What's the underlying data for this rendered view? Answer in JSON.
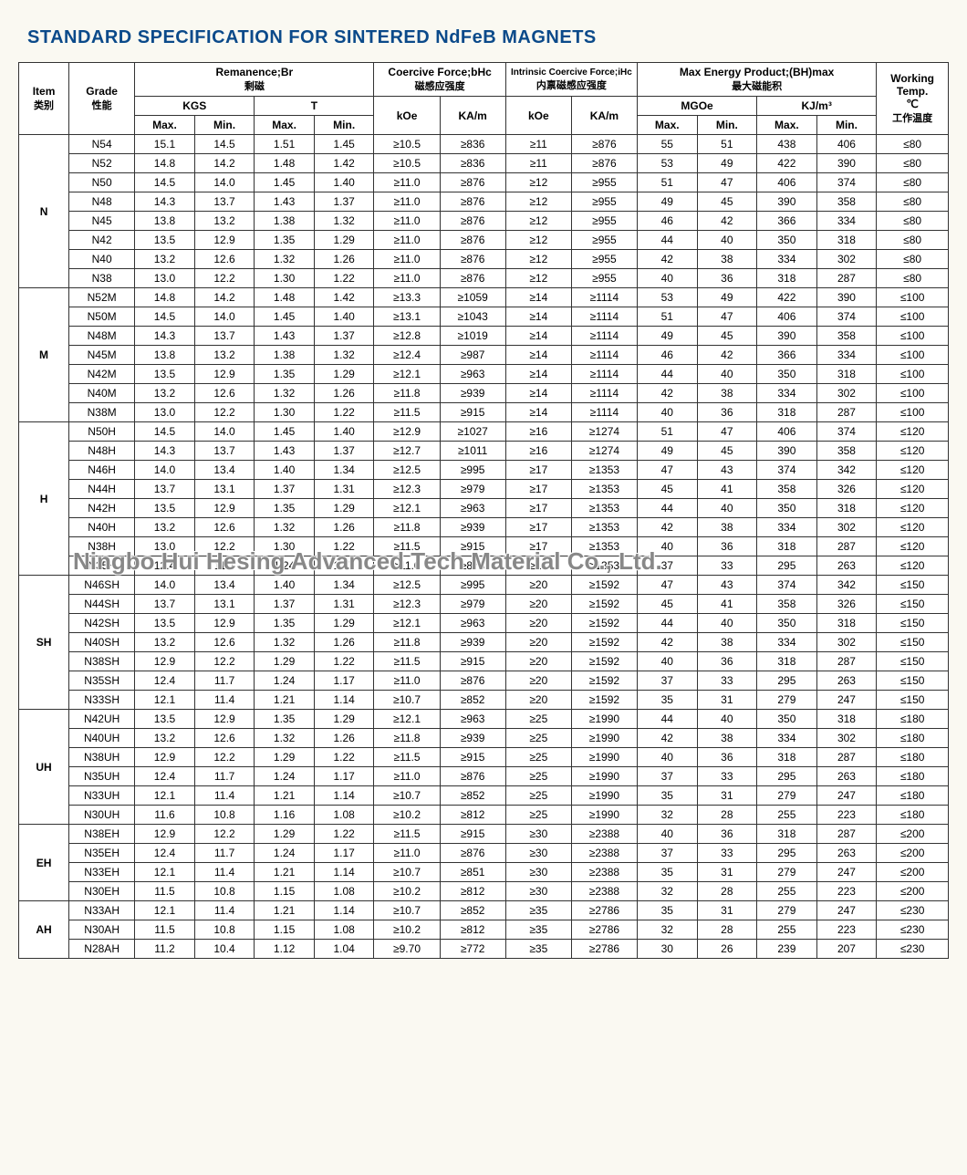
{
  "title": "STANDARD SPECIFICATION FOR SINTERED NdFeB MAGNETS",
  "watermark": "Ningbo Hui Hesing Advanced Tech Material Co., Ltd.",
  "headers": {
    "item": "Item",
    "item_cn": "类别",
    "grade": "Grade",
    "grade_cn": "性能",
    "remanence": "Remanence;Br",
    "remanence_cn": "剩磁",
    "kgs": "KGS",
    "t": "T",
    "coercive": "Coercive Force;bHc",
    "coercive_cn": "磁感应强度",
    "intrinsic": "Intrinsic Coercive Force;iHc",
    "intrinsic_cn": "内禀磁感应强度",
    "maxenergy": "Max Energy Product;(BH)max",
    "maxenergy_cn": "最大磁能积",
    "mgoe": "MGOe",
    "kjm": "KJ/m³",
    "workingtemp": "Working Temp.",
    "workingtemp_unit": "℃",
    "workingtemp_cn": "工作温度",
    "max": "Max.",
    "min": "Min.",
    "koe": "kOe",
    "kam": "KA/m"
  },
  "groups": [
    {
      "item": "N",
      "rows": [
        {
          "grade": "N54",
          "kgs_max": "15.1",
          "kgs_min": "14.5",
          "t_max": "1.51",
          "t_min": "1.45",
          "koe1": "≥10.5",
          "kam1": "≥836",
          "koe2": "≥11",
          "kam2": "≥876",
          "mgoe_max": "55",
          "mgoe_min": "51",
          "kjm_max": "438",
          "kjm_min": "406",
          "temp": "≤80"
        },
        {
          "grade": "N52",
          "kgs_max": "14.8",
          "kgs_min": "14.2",
          "t_max": "1.48",
          "t_min": "1.42",
          "koe1": "≥10.5",
          "kam1": "≥836",
          "koe2": "≥11",
          "kam2": "≥876",
          "mgoe_max": "53",
          "mgoe_min": "49",
          "kjm_max": "422",
          "kjm_min": "390",
          "temp": "≤80"
        },
        {
          "grade": "N50",
          "kgs_max": "14.5",
          "kgs_min": "14.0",
          "t_max": "1.45",
          "t_min": "1.40",
          "koe1": "≥11.0",
          "kam1": "≥876",
          "koe2": "≥12",
          "kam2": "≥955",
          "mgoe_max": "51",
          "mgoe_min": "47",
          "kjm_max": "406",
          "kjm_min": "374",
          "temp": "≤80"
        },
        {
          "grade": "N48",
          "kgs_max": "14.3",
          "kgs_min": "13.7",
          "t_max": "1.43",
          "t_min": "1.37",
          "koe1": "≥11.0",
          "kam1": "≥876",
          "koe2": "≥12",
          "kam2": "≥955",
          "mgoe_max": "49",
          "mgoe_min": "45",
          "kjm_max": "390",
          "kjm_min": "358",
          "temp": "≤80"
        },
        {
          "grade": "N45",
          "kgs_max": "13.8",
          "kgs_min": "13.2",
          "t_max": "1.38",
          "t_min": "1.32",
          "koe1": "≥11.0",
          "kam1": "≥876",
          "koe2": "≥12",
          "kam2": "≥955",
          "mgoe_max": "46",
          "mgoe_min": "42",
          "kjm_max": "366",
          "kjm_min": "334",
          "temp": "≤80"
        },
        {
          "grade": "N42",
          "kgs_max": "13.5",
          "kgs_min": "12.9",
          "t_max": "1.35",
          "t_min": "1.29",
          "koe1": "≥11.0",
          "kam1": "≥876",
          "koe2": "≥12",
          "kam2": "≥955",
          "mgoe_max": "44",
          "mgoe_min": "40",
          "kjm_max": "350",
          "kjm_min": "318",
          "temp": "≤80"
        },
        {
          "grade": "N40",
          "kgs_max": "13.2",
          "kgs_min": "12.6",
          "t_max": "1.32",
          "t_min": "1.26",
          "koe1": "≥11.0",
          "kam1": "≥876",
          "koe2": "≥12",
          "kam2": "≥955",
          "mgoe_max": "42",
          "mgoe_min": "38",
          "kjm_max": "334",
          "kjm_min": "302",
          "temp": "≤80"
        },
        {
          "grade": "N38",
          "kgs_max": "13.0",
          "kgs_min": "12.2",
          "t_max": "1.30",
          "t_min": "1.22",
          "koe1": "≥11.0",
          "kam1": "≥876",
          "koe2": "≥12",
          "kam2": "≥955",
          "mgoe_max": "40",
          "mgoe_min": "36",
          "kjm_max": "318",
          "kjm_min": "287",
          "temp": "≤80"
        }
      ]
    },
    {
      "item": "M",
      "rows": [
        {
          "grade": "N52M",
          "kgs_max": "14.8",
          "kgs_min": "14.2",
          "t_max": "1.48",
          "t_min": "1.42",
          "koe1": "≥13.3",
          "kam1": "≥1059",
          "koe2": "≥14",
          "kam2": "≥1114",
          "mgoe_max": "53",
          "mgoe_min": "49",
          "kjm_max": "422",
          "kjm_min": "390",
          "temp": "≤100"
        },
        {
          "grade": "N50M",
          "kgs_max": "14.5",
          "kgs_min": "14.0",
          "t_max": "1.45",
          "t_min": "1.40",
          "koe1": "≥13.1",
          "kam1": "≥1043",
          "koe2": "≥14",
          "kam2": "≥1114",
          "mgoe_max": "51",
          "mgoe_min": "47",
          "kjm_max": "406",
          "kjm_min": "374",
          "temp": "≤100"
        },
        {
          "grade": "N48M",
          "kgs_max": "14.3",
          "kgs_min": "13.7",
          "t_max": "1.43",
          "t_min": "1.37",
          "koe1": "≥12.8",
          "kam1": "≥1019",
          "koe2": "≥14",
          "kam2": "≥1114",
          "mgoe_max": "49",
          "mgoe_min": "45",
          "kjm_max": "390",
          "kjm_min": "358",
          "temp": "≤100"
        },
        {
          "grade": "N45M",
          "kgs_max": "13.8",
          "kgs_min": "13.2",
          "t_max": "1.38",
          "t_min": "1.32",
          "koe1": "≥12.4",
          "kam1": "≥987",
          "koe2": "≥14",
          "kam2": "≥1114",
          "mgoe_max": "46",
          "mgoe_min": "42",
          "kjm_max": "366",
          "kjm_min": "334",
          "temp": "≤100"
        },
        {
          "grade": "N42M",
          "kgs_max": "13.5",
          "kgs_min": "12.9",
          "t_max": "1.35",
          "t_min": "1.29",
          "koe1": "≥12.1",
          "kam1": "≥963",
          "koe2": "≥14",
          "kam2": "≥1114",
          "mgoe_max": "44",
          "mgoe_min": "40",
          "kjm_max": "350",
          "kjm_min": "318",
          "temp": "≤100"
        },
        {
          "grade": "N40M",
          "kgs_max": "13.2",
          "kgs_min": "12.6",
          "t_max": "1.32",
          "t_min": "1.26",
          "koe1": "≥11.8",
          "kam1": "≥939",
          "koe2": "≥14",
          "kam2": "≥1114",
          "mgoe_max": "42",
          "mgoe_min": "38",
          "kjm_max": "334",
          "kjm_min": "302",
          "temp": "≤100"
        },
        {
          "grade": "N38M",
          "kgs_max": "13.0",
          "kgs_min": "12.2",
          "t_max": "1.30",
          "t_min": "1.22",
          "koe1": "≥11.5",
          "kam1": "≥915",
          "koe2": "≥14",
          "kam2": "≥1114",
          "mgoe_max": "40",
          "mgoe_min": "36",
          "kjm_max": "318",
          "kjm_min": "287",
          "temp": "≤100"
        }
      ]
    },
    {
      "item": "H",
      "rows": [
        {
          "grade": "N50H",
          "kgs_max": "14.5",
          "kgs_min": "14.0",
          "t_max": "1.45",
          "t_min": "1.40",
          "koe1": "≥12.9",
          "kam1": "≥1027",
          "koe2": "≥16",
          "kam2": "≥1274",
          "mgoe_max": "51",
          "mgoe_min": "47",
          "kjm_max": "406",
          "kjm_min": "374",
          "temp": "≤120"
        },
        {
          "grade": "N48H",
          "kgs_max": "14.3",
          "kgs_min": "13.7",
          "t_max": "1.43",
          "t_min": "1.37",
          "koe1": "≥12.7",
          "kam1": "≥1011",
          "koe2": "≥16",
          "kam2": "≥1274",
          "mgoe_max": "49",
          "mgoe_min": "45",
          "kjm_max": "390",
          "kjm_min": "358",
          "temp": "≤120"
        },
        {
          "grade": "N46H",
          "kgs_max": "14.0",
          "kgs_min": "13.4",
          "t_max": "1.40",
          "t_min": "1.34",
          "koe1": "≥12.5",
          "kam1": "≥995",
          "koe2": "≥17",
          "kam2": "≥1353",
          "mgoe_max": "47",
          "mgoe_min": "43",
          "kjm_max": "374",
          "kjm_min": "342",
          "temp": "≤120"
        },
        {
          "grade": "N44H",
          "kgs_max": "13.7",
          "kgs_min": "13.1",
          "t_max": "1.37",
          "t_min": "1.31",
          "koe1": "≥12.3",
          "kam1": "≥979",
          "koe2": "≥17",
          "kam2": "≥1353",
          "mgoe_max": "45",
          "mgoe_min": "41",
          "kjm_max": "358",
          "kjm_min": "326",
          "temp": "≤120"
        },
        {
          "grade": "N42H",
          "kgs_max": "13.5",
          "kgs_min": "12.9",
          "t_max": "1.35",
          "t_min": "1.29",
          "koe1": "≥12.1",
          "kam1": "≥963",
          "koe2": "≥17",
          "kam2": "≥1353",
          "mgoe_max": "44",
          "mgoe_min": "40",
          "kjm_max": "350",
          "kjm_min": "318",
          "temp": "≤120"
        },
        {
          "grade": "N40H",
          "kgs_max": "13.2",
          "kgs_min": "12.6",
          "t_max": "1.32",
          "t_min": "1.26",
          "koe1": "≥11.8",
          "kam1": "≥939",
          "koe2": "≥17",
          "kam2": "≥1353",
          "mgoe_max": "42",
          "mgoe_min": "38",
          "kjm_max": "334",
          "kjm_min": "302",
          "temp": "≤120"
        },
        {
          "grade": "N38H",
          "kgs_max": "13.0",
          "kgs_min": "12.2",
          "t_max": "1.30",
          "t_min": "1.22",
          "koe1": "≥11.5",
          "kam1": "≥915",
          "koe2": "≥17",
          "kam2": "≥1353",
          "mgoe_max": "40",
          "mgoe_min": "36",
          "kjm_max": "318",
          "kjm_min": "287",
          "temp": "≤120"
        },
        {
          "grade": "N35H",
          "kgs_max": "12.4",
          "kgs_min": "11.7",
          "t_max": "1.24",
          "t_min": "1.17",
          "koe1": "≥11.0",
          "kam1": "≥876",
          "koe2": "≥17",
          "kam2": "≥1353",
          "mgoe_max": "37",
          "mgoe_min": "33",
          "kjm_max": "295",
          "kjm_min": "263",
          "temp": "≤120"
        }
      ]
    },
    {
      "item": "SH",
      "rows": [
        {
          "grade": "N46SH",
          "kgs_max": "14.0",
          "kgs_min": "13.4",
          "t_max": "1.40",
          "t_min": "1.34",
          "koe1": "≥12.5",
          "kam1": "≥995",
          "koe2": "≥20",
          "kam2": "≥1592",
          "mgoe_max": "47",
          "mgoe_min": "43",
          "kjm_max": "374",
          "kjm_min": "342",
          "temp": "≤150"
        },
        {
          "grade": "N44SH",
          "kgs_max": "13.7",
          "kgs_min": "13.1",
          "t_max": "1.37",
          "t_min": "1.31",
          "koe1": "≥12.3",
          "kam1": "≥979",
          "koe2": "≥20",
          "kam2": "≥1592",
          "mgoe_max": "45",
          "mgoe_min": "41",
          "kjm_max": "358",
          "kjm_min": "326",
          "temp": "≤150"
        },
        {
          "grade": "N42SH",
          "kgs_max": "13.5",
          "kgs_min": "12.9",
          "t_max": "1.35",
          "t_min": "1.29",
          "koe1": "≥12.1",
          "kam1": "≥963",
          "koe2": "≥20",
          "kam2": "≥1592",
          "mgoe_max": "44",
          "mgoe_min": "40",
          "kjm_max": "350",
          "kjm_min": "318",
          "temp": "≤150"
        },
        {
          "grade": "N40SH",
          "kgs_max": "13.2",
          "kgs_min": "12.6",
          "t_max": "1.32",
          "t_min": "1.26",
          "koe1": "≥11.8",
          "kam1": "≥939",
          "koe2": "≥20",
          "kam2": "≥1592",
          "mgoe_max": "42",
          "mgoe_min": "38",
          "kjm_max": "334",
          "kjm_min": "302",
          "temp": "≤150"
        },
        {
          "grade": "N38SH",
          "kgs_max": "12.9",
          "kgs_min": "12.2",
          "t_max": "1.29",
          "t_min": "1.22",
          "koe1": "≥11.5",
          "kam1": "≥915",
          "koe2": "≥20",
          "kam2": "≥1592",
          "mgoe_max": "40",
          "mgoe_min": "36",
          "kjm_max": "318",
          "kjm_min": "287",
          "temp": "≤150"
        },
        {
          "grade": "N35SH",
          "kgs_max": "12.4",
          "kgs_min": "11.7",
          "t_max": "1.24",
          "t_min": "1.17",
          "koe1": "≥11.0",
          "kam1": "≥876",
          "koe2": "≥20",
          "kam2": "≥1592",
          "mgoe_max": "37",
          "mgoe_min": "33",
          "kjm_max": "295",
          "kjm_min": "263",
          "temp": "≤150"
        },
        {
          "grade": "N33SH",
          "kgs_max": "12.1",
          "kgs_min": "11.4",
          "t_max": "1.21",
          "t_min": "1.14",
          "koe1": "≥10.7",
          "kam1": "≥852",
          "koe2": "≥20",
          "kam2": "≥1592",
          "mgoe_max": "35",
          "mgoe_min": "31",
          "kjm_max": "279",
          "kjm_min": "247",
          "temp": "≤150"
        }
      ]
    },
    {
      "item": "UH",
      "rows": [
        {
          "grade": "N42UH",
          "kgs_max": "13.5",
          "kgs_min": "12.9",
          "t_max": "1.35",
          "t_min": "1.29",
          "koe1": "≥12.1",
          "kam1": "≥963",
          "koe2": "≥25",
          "kam2": "≥1990",
          "mgoe_max": "44",
          "mgoe_min": "40",
          "kjm_max": "350",
          "kjm_min": "318",
          "temp": "≤180"
        },
        {
          "grade": "N40UH",
          "kgs_max": "13.2",
          "kgs_min": "12.6",
          "t_max": "1.32",
          "t_min": "1.26",
          "koe1": "≥11.8",
          "kam1": "≥939",
          "koe2": "≥25",
          "kam2": "≥1990",
          "mgoe_max": "42",
          "mgoe_min": "38",
          "kjm_max": "334",
          "kjm_min": "302",
          "temp": "≤180"
        },
        {
          "grade": "N38UH",
          "kgs_max": "12.9",
          "kgs_min": "12.2",
          "t_max": "1.29",
          "t_min": "1.22",
          "koe1": "≥11.5",
          "kam1": "≥915",
          "koe2": "≥25",
          "kam2": "≥1990",
          "mgoe_max": "40",
          "mgoe_min": "36",
          "kjm_max": "318",
          "kjm_min": "287",
          "temp": "≤180"
        },
        {
          "grade": "N35UH",
          "kgs_max": "12.4",
          "kgs_min": "11.7",
          "t_max": "1.24",
          "t_min": "1.17",
          "koe1": "≥11.0",
          "kam1": "≥876",
          "koe2": "≥25",
          "kam2": "≥1990",
          "mgoe_max": "37",
          "mgoe_min": "33",
          "kjm_max": "295",
          "kjm_min": "263",
          "temp": "≤180"
        },
        {
          "grade": "N33UH",
          "kgs_max": "12.1",
          "kgs_min": "11.4",
          "t_max": "1.21",
          "t_min": "1.14",
          "koe1": "≥10.7",
          "kam1": "≥852",
          "koe2": "≥25",
          "kam2": "≥1990",
          "mgoe_max": "35",
          "mgoe_min": "31",
          "kjm_max": "279",
          "kjm_min": "247",
          "temp": "≤180"
        },
        {
          "grade": "N30UH",
          "kgs_max": "11.6",
          "kgs_min": "10.8",
          "t_max": "1.16",
          "t_min": "1.08",
          "koe1": "≥10.2",
          "kam1": "≥812",
          "koe2": "≥25",
          "kam2": "≥1990",
          "mgoe_max": "32",
          "mgoe_min": "28",
          "kjm_max": "255",
          "kjm_min": "223",
          "temp": "≤180"
        }
      ]
    },
    {
      "item": "EH",
      "rows": [
        {
          "grade": "N38EH",
          "kgs_max": "12.9",
          "kgs_min": "12.2",
          "t_max": "1.29",
          "t_min": "1.22",
          "koe1": "≥11.5",
          "kam1": "≥915",
          "koe2": "≥30",
          "kam2": "≥2388",
          "mgoe_max": "40",
          "mgoe_min": "36",
          "kjm_max": "318",
          "kjm_min": "287",
          "temp": "≤200"
        },
        {
          "grade": "N35EH",
          "kgs_max": "12.4",
          "kgs_min": "11.7",
          "t_max": "1.24",
          "t_min": "1.17",
          "koe1": "≥11.0",
          "kam1": "≥876",
          "koe2": "≥30",
          "kam2": "≥2388",
          "mgoe_max": "37",
          "mgoe_min": "33",
          "kjm_max": "295",
          "kjm_min": "263",
          "temp": "≤200"
        },
        {
          "grade": "N33EH",
          "kgs_max": "12.1",
          "kgs_min": "11.4",
          "t_max": "1.21",
          "t_min": "1.14",
          "koe1": "≥10.7",
          "kam1": "≥851",
          "koe2": "≥30",
          "kam2": "≥2388",
          "mgoe_max": "35",
          "mgoe_min": "31",
          "kjm_max": "279",
          "kjm_min": "247",
          "temp": "≤200"
        },
        {
          "grade": "N30EH",
          "kgs_max": "11.5",
          "kgs_min": "10.8",
          "t_max": "1.15",
          "t_min": "1.08",
          "koe1": "≥10.2",
          "kam1": "≥812",
          "koe2": "≥30",
          "kam2": "≥2388",
          "mgoe_max": "32",
          "mgoe_min": "28",
          "kjm_max": "255",
          "kjm_min": "223",
          "temp": "≤200"
        }
      ]
    },
    {
      "item": "AH",
      "rows": [
        {
          "grade": "N33AH",
          "kgs_max": "12.1",
          "kgs_min": "11.4",
          "t_max": "1.21",
          "t_min": "1.14",
          "koe1": "≥10.7",
          "kam1": "≥852",
          "koe2": "≥35",
          "kam2": "≥2786",
          "mgoe_max": "35",
          "mgoe_min": "31",
          "kjm_max": "279",
          "kjm_min": "247",
          "temp": "≤230"
        },
        {
          "grade": "N30AH",
          "kgs_max": "11.5",
          "kgs_min": "10.8",
          "t_max": "1.15",
          "t_min": "1.08",
          "koe1": "≥10.2",
          "kam1": "≥812",
          "koe2": "≥35",
          "kam2": "≥2786",
          "mgoe_max": "32",
          "mgoe_min": "28",
          "kjm_max": "255",
          "kjm_min": "223",
          "temp": "≤230"
        },
        {
          "grade": "N28AH",
          "kgs_max": "11.2",
          "kgs_min": "10.4",
          "t_max": "1.12",
          "t_min": "1.04",
          "koe1": "≥9.70",
          "kam1": "≥772",
          "koe2": "≥35",
          "kam2": "≥2786",
          "mgoe_max": "30",
          "mgoe_min": "26",
          "kjm_max": "239",
          "kjm_min": "207",
          "temp": "≤230"
        }
      ]
    }
  ]
}
